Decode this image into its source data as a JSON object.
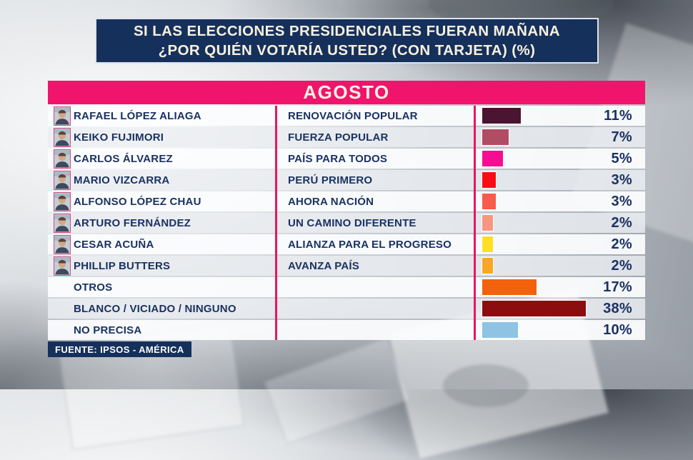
{
  "title": {
    "line1": "SI LAS ELECCIONES PRESIDENCIALES FUERAN MAÑANA",
    "line2": "¿POR QUIÉN VOTARÍA USTED? (CON TARJETA) (%)"
  },
  "period_label": "AGOSTO",
  "source": "FUENTE: IPSOS - AMÉRICA",
  "colors": {
    "navy_box": "#16305C",
    "text_navy": "#1A3263",
    "cream_text": "#F8F1DF",
    "month_banner_pink": "#F0146C",
    "divider_pink": "#E8175D",
    "photo_border_pink": "#CF4F82"
  },
  "chart_data": {
    "type": "bar",
    "title": "SI LAS ELECCIONES PRESIDENCIALES FUERAN MAÑANA ¿POR QUIÉN VOTARÍA USTED? (CON TARJETA) (%)",
    "period": "AGOSTO",
    "source": "FUENTE: IPSOS - AMÉRICA",
    "orientation": "horizontal",
    "xlim": [
      0,
      38
    ],
    "unit": "%",
    "rows": [
      {
        "candidate": "RAFAEL LÓPEZ ALIAGA",
        "party": "RENOVACIÓN POPULAR",
        "value": 11,
        "pct_label": "11%",
        "bar_color": "#4A1530",
        "has_photo": true
      },
      {
        "candidate": "KEIKO FUJIMORI",
        "party": "FUERZA POPULAR",
        "value": 7,
        "pct_label": "7%",
        "bar_color": "#B04C63",
        "has_photo": true
      },
      {
        "candidate": "CARLOS ÁLVAREZ",
        "party": "PAÍS PARA TODOS",
        "value": 5,
        "pct_label": "5%",
        "bar_color": "#F70D92",
        "has_photo": true
      },
      {
        "candidate": "MARIO VIZCARRA",
        "party": "PERÚ PRIMERO",
        "value": 3,
        "pct_label": "3%",
        "bar_color": "#F90D15",
        "has_photo": true
      },
      {
        "candidate": "ALFONSO LÓPEZ CHAU",
        "party": "AHORA NACIÓN",
        "value": 3,
        "pct_label": "3%",
        "bar_color": "#F65B4B",
        "has_photo": true
      },
      {
        "candidate": "ARTURO FERNÁNDEZ",
        "party": "UN CAMINO DIFERENTE",
        "value": 2,
        "pct_label": "2%",
        "bar_color": "#F8967F",
        "has_photo": true
      },
      {
        "candidate": "CESAR ACUÑA",
        "party": "ALIANZA PARA EL PROGRESO",
        "value": 2,
        "pct_label": "2%",
        "bar_color": "#FFDE26",
        "has_photo": true
      },
      {
        "candidate": "PHILLIP BUTTERS",
        "party": "AVANZA PAÍS",
        "value": 2,
        "pct_label": "2%",
        "bar_color": "#F9A623",
        "has_photo": true
      },
      {
        "candidate": "OTROS",
        "party": "",
        "value": 17,
        "pct_label": "17%",
        "bar_color": "#F4610B",
        "has_photo": false
      },
      {
        "candidate": "BLANCO / VICIADO / NINGUNO",
        "party": "",
        "value": 38,
        "pct_label": "38%",
        "bar_color": "#8B0D0D",
        "has_photo": false
      },
      {
        "candidate": "NO PRECISA",
        "party": "",
        "value": 10,
        "pct_label": "10%",
        "bar_color": "#8EC3E4",
        "has_photo": false
      }
    ]
  }
}
